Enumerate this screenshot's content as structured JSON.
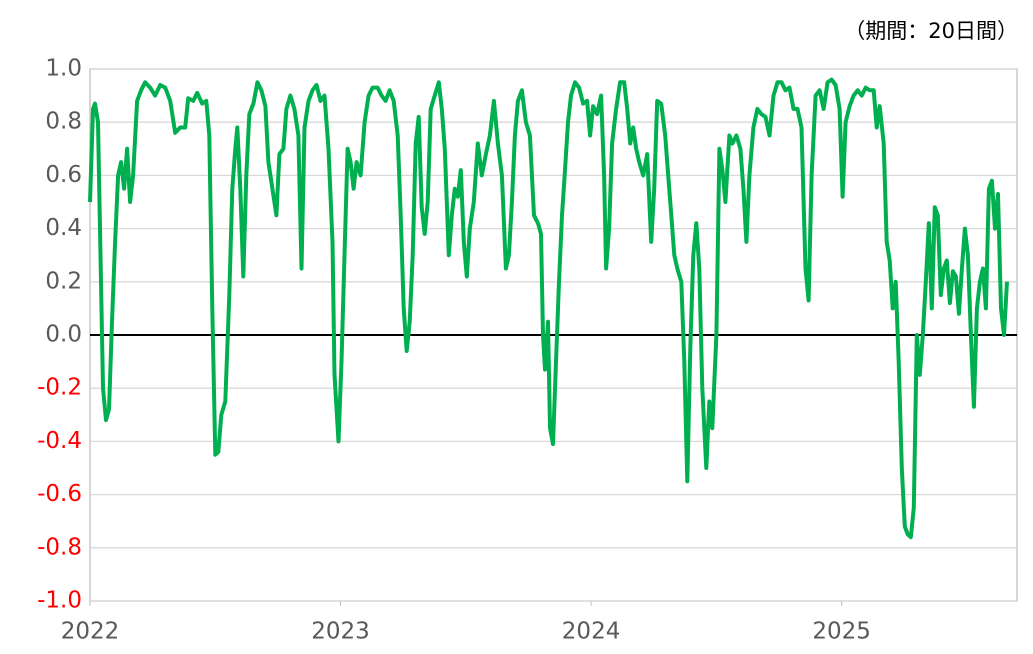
{
  "chart_data": {
    "type": "line",
    "annotation": "（期間：20日間）",
    "color": "#00b050",
    "negative_tick_color": "#ff0000",
    "zero_line_color": "#000000",
    "grid": true,
    "xlim": [
      2022,
      2025.7
    ],
    "xticks": [
      2022,
      2023,
      2024,
      2025
    ],
    "ylim": [
      -1.0,
      1.0
    ],
    "yticks": [
      {
        "value": -1.0,
        "label": "-1.0"
      },
      -0.8,
      -0.6,
      -0.4,
      -0.2,
      {
        "value": 0,
        "label": "0.0"
      },
      0.2,
      0.4,
      0.6,
      0.8,
      {
        "value": 1.0,
        "label": "1.0"
      }
    ],
    "x": [
      2022.0,
      2022.012,
      2022.02,
      2022.032,
      2022.04,
      2022.052,
      2022.064,
      2022.076,
      2022.088,
      2022.1,
      2022.112,
      2022.124,
      2022.136,
      2022.148,
      2022.16,
      2022.172,
      2022.188,
      2022.204,
      2022.22,
      2022.24,
      2022.26,
      2022.28,
      2022.3,
      2022.32,
      2022.34,
      2022.36,
      2022.38,
      2022.392,
      2022.412,
      2022.428,
      2022.448,
      2022.464,
      2022.476,
      2022.488,
      2022.5,
      2022.512,
      2022.524,
      2022.54,
      2022.556,
      2022.568,
      2022.58,
      2022.588,
      2022.6,
      2022.612,
      2022.624,
      2022.636,
      2022.652,
      2022.668,
      2022.684,
      2022.7,
      2022.712,
      2022.728,
      2022.744,
      2022.756,
      2022.772,
      2022.784,
      2022.8,
      2022.816,
      2022.832,
      2022.844,
      2022.856,
      2022.872,
      2022.888,
      2022.904,
      2022.92,
      2022.936,
      2022.952,
      2022.968,
      2022.976,
      2022.992,
      2023.004,
      2023.016,
      2023.028,
      2023.04,
      2023.052,
      2023.064,
      2023.08,
      2023.096,
      2023.112,
      2023.128,
      2023.148,
      2023.164,
      2023.18,
      2023.196,
      2023.212,
      2023.228,
      2023.24,
      2023.252,
      2023.264,
      2023.276,
      2023.288,
      2023.3,
      2023.312,
      2023.324,
      2023.336,
      2023.348,
      2023.36,
      2023.376,
      2023.392,
      2023.404,
      2023.416,
      2023.432,
      2023.444,
      2023.456,
      2023.468,
      2023.48,
      2023.492,
      2023.504,
      2023.516,
      2023.532,
      2023.548,
      2023.564,
      2023.58,
      2023.596,
      2023.612,
      2023.628,
      2023.644,
      2023.66,
      2023.672,
      2023.684,
      2023.696,
      2023.708,
      2023.724,
      2023.74,
      2023.756,
      2023.772,
      2023.788,
      2023.8,
      2023.808,
      2023.816,
      2023.828,
      2023.836,
      2023.848,
      2023.86,
      2023.872,
      2023.884,
      2023.896,
      2023.908,
      2023.92,
      2023.936,
      2023.952,
      2023.968,
      2023.984,
      2023.996,
      2024.008,
      2024.024,
      2024.04,
      2024.052,
      2024.06,
      2024.072,
      2024.084,
      2024.1,
      2024.116,
      2024.132,
      2024.144,
      2024.156,
      2024.168,
      2024.18,
      2024.192,
      2024.208,
      2024.224,
      2024.24,
      2024.252,
      2024.264,
      2024.28,
      2024.296,
      2024.308,
      2024.32,
      2024.332,
      2024.344,
      2024.36,
      2024.372,
      2024.384,
      2024.396,
      2024.408,
      2024.42,
      2024.432,
      2024.444,
      2024.46,
      2024.472,
      2024.484,
      2024.5,
      2024.512,
      2024.524,
      2024.536,
      2024.552,
      2024.564,
      2024.58,
      2024.596,
      2024.608,
      2024.62,
      2024.632,
      2024.648,
      2024.664,
      2024.68,
      2024.696,
      2024.712,
      2024.728,
      2024.744,
      2024.76,
      2024.776,
      2024.792,
      2024.808,
      2024.824,
      2024.84,
      2024.856,
      2024.868,
      2024.88,
      2024.896,
      2024.912,
      2024.928,
      2024.944,
      2024.96,
      2024.976,
      2024.992,
      2025.004,
      2025.016,
      2025.032,
      2025.048,
      2025.064,
      2025.08,
      2025.096,
      2025.112,
      2025.128,
      2025.14,
      2025.152,
      2025.168,
      2025.18,
      2025.192,
      2025.204,
      2025.216,
      2025.228,
      2025.24,
      2025.252,
      2025.264,
      2025.276,
      2025.288,
      2025.3,
      2025.312,
      2025.324,
      2025.336,
      2025.348,
      2025.36,
      2025.372,
      2025.384,
      2025.396,
      2025.408,
      2025.42,
      2025.432,
      2025.444,
      2025.456,
      2025.468,
      2025.48,
      2025.492,
      2025.504,
      2025.516,
      2025.528,
      2025.54,
      2025.552,
      2025.564,
      2025.576,
      2025.588,
      2025.6,
      2025.612,
      2025.624,
      2025.636,
      2025.648,
      2025.66
    ],
    "values": [
      0.5,
      0.85,
      0.87,
      0.8,
      0.4,
      -0.2,
      -0.32,
      -0.28,
      0.05,
      0.35,
      0.6,
      0.65,
      0.55,
      0.7,
      0.5,
      0.6,
      0.88,
      0.92,
      0.95,
      0.93,
      0.9,
      0.94,
      0.93,
      0.88,
      0.76,
      0.78,
      0.78,
      0.89,
      0.88,
      0.91,
      0.87,
      0.88,
      0.75,
      0.1,
      -0.45,
      -0.44,
      -0.3,
      -0.25,
      0.15,
      0.55,
      0.7,
      0.78,
      0.55,
      0.22,
      0.6,
      0.83,
      0.87,
      0.95,
      0.92,
      0.86,
      0.65,
      0.55,
      0.45,
      0.68,
      0.7,
      0.85,
      0.9,
      0.85,
      0.75,
      0.25,
      0.78,
      0.88,
      0.92,
      0.94,
      0.88,
      0.9,
      0.7,
      0.35,
      -0.15,
      -0.4,
      -0.1,
      0.3,
      0.7,
      0.65,
      0.55,
      0.65,
      0.6,
      0.8,
      0.9,
      0.93,
      0.93,
      0.9,
      0.88,
      0.92,
      0.88,
      0.75,
      0.45,
      0.1,
      -0.06,
      0.05,
      0.3,
      0.72,
      0.82,
      0.48,
      0.38,
      0.5,
      0.85,
      0.9,
      0.95,
      0.85,
      0.7,
      0.3,
      0.45,
      0.55,
      0.52,
      0.62,
      0.35,
      0.22,
      0.4,
      0.5,
      0.72,
      0.6,
      0.68,
      0.75,
      0.88,
      0.72,
      0.6,
      0.25,
      0.3,
      0.5,
      0.75,
      0.88,
      0.92,
      0.8,
      0.75,
      0.45,
      0.42,
      0.38,
      0.0,
      -0.13,
      0.05,
      -0.35,
      -0.41,
      -0.1,
      0.2,
      0.45,
      0.62,
      0.8,
      0.9,
      0.95,
      0.93,
      0.87,
      0.88,
      0.75,
      0.86,
      0.83,
      0.9,
      0.6,
      0.25,
      0.4,
      0.72,
      0.85,
      0.95,
      0.95,
      0.85,
      0.72,
      0.78,
      0.7,
      0.65,
      0.6,
      0.68,
      0.35,
      0.55,
      0.88,
      0.87,
      0.75,
      0.6,
      0.45,
      0.3,
      0.25,
      0.2,
      -0.1,
      -0.55,
      -0.05,
      0.3,
      0.42,
      0.25,
      -0.2,
      -0.5,
      -0.25,
      -0.35,
      0.0,
      0.7,
      0.62,
      0.5,
      0.75,
      0.72,
      0.75,
      0.7,
      0.55,
      0.35,
      0.6,
      0.78,
      0.85,
      0.83,
      0.82,
      0.75,
      0.9,
      0.95,
      0.95,
      0.92,
      0.93,
      0.85,
      0.85,
      0.78,
      0.25,
      0.13,
      0.6,
      0.9,
      0.92,
      0.85,
      0.95,
      0.96,
      0.94,
      0.85,
      0.52,
      0.8,
      0.86,
      0.9,
      0.92,
      0.9,
      0.93,
      0.92,
      0.92,
      0.78,
      0.86,
      0.72,
      0.35,
      0.28,
      0.1,
      0.2,
      -0.1,
      -0.5,
      -0.72,
      -0.75,
      -0.76,
      -0.65,
      0.0,
      -0.15,
      0.0,
      0.2,
      0.42,
      0.1,
      0.48,
      0.45,
      0.15,
      0.25,
      0.28,
      0.12,
      0.24,
      0.22,
      0.08,
      0.25,
      0.4,
      0.3,
      0.0,
      -0.27,
      0.1,
      0.2,
      0.25,
      0.1,
      0.55,
      0.58,
      0.4,
      0.53,
      0.1,
      0.0,
      0.2
    ]
  }
}
